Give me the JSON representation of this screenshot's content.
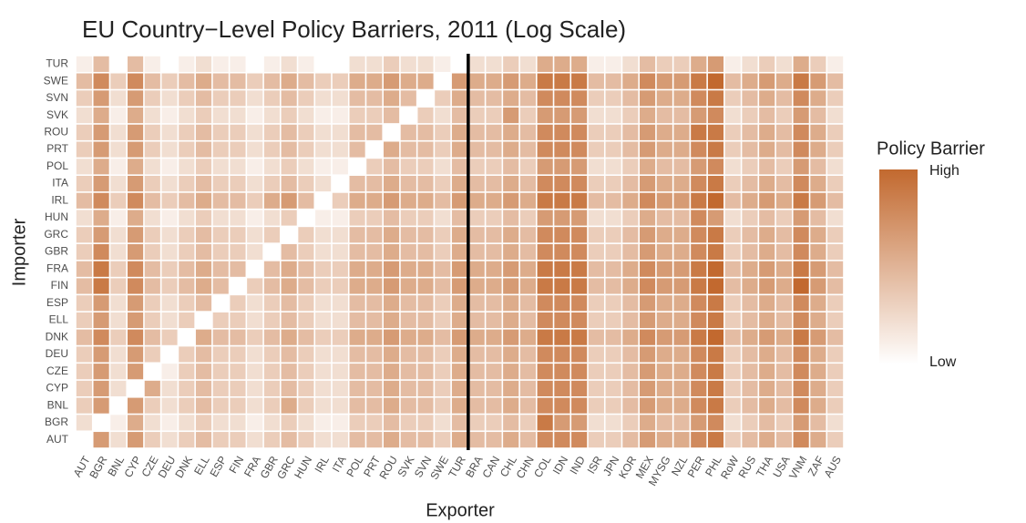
{
  "chart_data": {
    "type": "heatmap",
    "title": "EU Country−Level Policy Barriers, 2011 (Log Scale)",
    "x_label": "Exporter",
    "y_label": "Importer",
    "x": [
      "AUT",
      "BGR",
      "BNL",
      "CYP",
      "CZE",
      "DEU",
      "DNK",
      "ELL",
      "ESP",
      "FIN",
      "FRA",
      "GBR",
      "GRC",
      "HUN",
      "IRL",
      "ITA",
      "POL",
      "PRT",
      "ROU",
      "SVK",
      "SVN",
      "SWE",
      "TUR",
      "BRA",
      "CAN",
      "CHL",
      "CHN",
      "COL",
      "IDN",
      "IND",
      "ISR",
      "JPN",
      "KOR",
      "MEX",
      "MYSG",
      "NZL",
      "PER",
      "PHL",
      "RoW",
      "RUS",
      "THA",
      "USA",
      "VNM",
      "ZAF",
      "AUS"
    ],
    "y": [
      "AUT",
      "BGR",
      "BNL",
      "CYP",
      "CZE",
      "DEU",
      "DNK",
      "ELL",
      "ESP",
      "FIN",
      "FRA",
      "GBR",
      "GRC",
      "HUN",
      "IRL",
      "ITA",
      "POL",
      "PRT",
      "ROU",
      "SVK",
      "SVN",
      "SWE",
      "TUR"
    ],
    "values": [
      [
        null,
        6,
        2,
        6,
        3,
        2,
        3,
        4,
        3,
        3,
        2,
        3,
        4,
        3,
        2,
        2,
        4,
        4,
        5,
        4,
        4,
        3,
        5,
        4,
        4,
        5,
        4,
        7,
        7,
        7,
        3,
        3,
        4,
        6,
        5,
        5,
        7,
        8,
        3,
        4,
        5,
        4,
        7,
        5,
        3
      ],
      [
        2,
        null,
        1,
        5,
        2,
        1,
        2,
        3,
        2,
        2,
        1,
        2,
        3,
        2,
        1,
        1,
        3,
        3,
        4,
        3,
        3,
        2,
        4,
        3,
        3,
        4,
        3,
        8,
        6,
        6,
        2,
        2,
        3,
        5,
        4,
        4,
        6,
        7,
        2,
        3,
        4,
        3,
        6,
        4,
        2
      ],
      [
        3,
        6,
        null,
        6,
        3,
        2,
        3,
        4,
        3,
        3,
        2,
        3,
        5,
        3,
        2,
        2,
        4,
        4,
        5,
        4,
        4,
        3,
        5,
        4,
        4,
        5,
        4,
        7,
        7,
        7,
        3,
        3,
        4,
        6,
        5,
        5,
        7,
        8,
        3,
        4,
        5,
        4,
        7,
        5,
        3
      ],
      [
        3,
        6,
        2,
        null,
        5,
        2,
        3,
        4,
        3,
        3,
        2,
        3,
        4,
        3,
        2,
        2,
        4,
        4,
        5,
        4,
        4,
        3,
        5,
        4,
        4,
        5,
        4,
        7,
        7,
        7,
        3,
        3,
        4,
        6,
        5,
        5,
        7,
        8,
        3,
        4,
        5,
        4,
        7,
        5,
        3
      ],
      [
        3,
        6,
        2,
        6,
        null,
        1,
        3,
        4,
        3,
        3,
        2,
        3,
        4,
        3,
        2,
        2,
        4,
        4,
        5,
        4,
        4,
        3,
        5,
        4,
        4,
        5,
        4,
        7,
        7,
        7,
        3,
        3,
        4,
        6,
        5,
        5,
        7,
        8,
        3,
        4,
        5,
        4,
        7,
        5,
        3
      ],
      [
        3,
        6,
        2,
        6,
        3,
        null,
        3,
        4,
        3,
        3,
        2,
        3,
        4,
        3,
        2,
        2,
        4,
        4,
        5,
        4,
        4,
        3,
        5,
        4,
        4,
        5,
        4,
        7,
        7,
        7,
        3,
        3,
        4,
        6,
        5,
        5,
        7,
        8,
        3,
        4,
        5,
        4,
        7,
        5,
        3
      ],
      [
        4,
        7,
        3,
        7,
        4,
        3,
        null,
        5,
        4,
        4,
        3,
        4,
        5,
        4,
        3,
        3,
        5,
        5,
        6,
        5,
        5,
        4,
        6,
        5,
        5,
        6,
        5,
        8,
        8,
        8,
        4,
        4,
        5,
        7,
        6,
        6,
        8,
        9,
        4,
        5,
        6,
        5,
        8,
        6,
        4
      ],
      [
        3,
        6,
        2,
        6,
        3,
        2,
        3,
        null,
        3,
        3,
        2,
        3,
        4,
        3,
        2,
        2,
        4,
        4,
        5,
        4,
        4,
        3,
        5,
        4,
        4,
        5,
        4,
        7,
        7,
        7,
        3,
        3,
        4,
        6,
        5,
        5,
        7,
        8,
        3,
        4,
        5,
        4,
        7,
        5,
        3
      ],
      [
        3,
        6,
        2,
        6,
        3,
        2,
        3,
        4,
        null,
        3,
        2,
        3,
        4,
        3,
        2,
        2,
        4,
        4,
        5,
        4,
        4,
        3,
        5,
        4,
        4,
        5,
        4,
        7,
        7,
        7,
        3,
        3,
        4,
        6,
        5,
        5,
        7,
        8,
        3,
        4,
        5,
        4,
        7,
        5,
        3
      ],
      [
        4,
        8,
        3,
        7,
        4,
        3,
        4,
        5,
        4,
        null,
        3,
        4,
        5,
        4,
        3,
        3,
        5,
        5,
        6,
        5,
        5,
        4,
        6,
        5,
        5,
        6,
        5,
        8,
        8,
        8,
        4,
        4,
        5,
        7,
        6,
        6,
        8,
        9,
        4,
        5,
        6,
        5,
        9,
        6,
        4
      ],
      [
        4,
        8,
        3,
        7,
        4,
        3,
        4,
        5,
        4,
        4,
        null,
        4,
        5,
        4,
        3,
        3,
        5,
        5,
        6,
        5,
        5,
        4,
        6,
        5,
        5,
        6,
        5,
        8,
        8,
        8,
        4,
        4,
        5,
        7,
        6,
        6,
        8,
        9,
        4,
        5,
        6,
        5,
        8,
        6,
        4
      ],
      [
        3,
        7,
        2,
        6,
        3,
        2,
        3,
        4,
        3,
        3,
        2,
        null,
        4,
        3,
        2,
        2,
        4,
        4,
        5,
        4,
        4,
        3,
        5,
        4,
        4,
        5,
        4,
        7,
        7,
        7,
        3,
        3,
        4,
        6,
        5,
        5,
        7,
        8,
        3,
        4,
        5,
        4,
        7,
        5,
        3
      ],
      [
        3,
        6,
        2,
        6,
        3,
        2,
        3,
        4,
        3,
        3,
        2,
        3,
        null,
        3,
        2,
        2,
        4,
        4,
        5,
        4,
        4,
        3,
        5,
        4,
        4,
        5,
        4,
        7,
        7,
        7,
        3,
        3,
        4,
        6,
        5,
        5,
        7,
        8,
        3,
        4,
        5,
        4,
        7,
        5,
        3
      ],
      [
        2,
        5,
        1,
        5,
        2,
        1,
        2,
        3,
        2,
        2,
        1,
        2,
        3,
        null,
        1,
        1,
        3,
        3,
        4,
        3,
        3,
        2,
        4,
        3,
        3,
        4,
        3,
        6,
        6,
        6,
        2,
        2,
        3,
        5,
        4,
        4,
        7,
        6,
        2,
        3,
        4,
        3,
        6,
        4,
        2
      ],
      [
        4,
        7,
        3,
        7,
        4,
        3,
        4,
        5,
        4,
        4,
        3,
        5,
        6,
        4,
        null,
        3,
        5,
        5,
        6,
        5,
        5,
        4,
        6,
        5,
        5,
        6,
        5,
        8,
        8,
        8,
        4,
        4,
        5,
        7,
        6,
        6,
        8,
        9,
        4,
        5,
        6,
        5,
        8,
        6,
        4
      ],
      [
        3,
        6,
        2,
        6,
        3,
        2,
        3,
        4,
        3,
        3,
        2,
        3,
        4,
        3,
        2,
        null,
        4,
        4,
        5,
        4,
        4,
        3,
        5,
        4,
        4,
        5,
        4,
        7,
        7,
        7,
        3,
        3,
        4,
        6,
        5,
        5,
        7,
        8,
        3,
        4,
        5,
        4,
        7,
        5,
        3
      ],
      [
        2,
        5,
        1,
        5,
        2,
        1,
        2,
        3,
        2,
        2,
        1,
        2,
        3,
        2,
        1,
        1,
        null,
        3,
        4,
        3,
        3,
        2,
        4,
        3,
        3,
        4,
        3,
        6,
        6,
        6,
        2,
        2,
        3,
        5,
        4,
        4,
        6,
        7,
        2,
        3,
        4,
        3,
        6,
        4,
        2
      ],
      [
        3,
        6,
        2,
        6,
        3,
        2,
        3,
        4,
        3,
        3,
        2,
        3,
        4,
        3,
        2,
        2,
        4,
        null,
        5,
        4,
        4,
        3,
        5,
        4,
        4,
        5,
        4,
        7,
        7,
        7,
        3,
        3,
        4,
        6,
        5,
        5,
        7,
        8,
        3,
        4,
        5,
        4,
        7,
        5,
        3
      ],
      [
        3,
        6,
        2,
        6,
        3,
        2,
        3,
        4,
        3,
        3,
        2,
        3,
        4,
        3,
        2,
        2,
        4,
        4,
        null,
        4,
        4,
        3,
        5,
        4,
        4,
        5,
        4,
        7,
        7,
        7,
        3,
        3,
        4,
        6,
        5,
        5,
        8,
        8,
        3,
        4,
        5,
        4,
        7,
        5,
        3
      ],
      [
        2,
        5,
        1,
        5,
        2,
        1,
        2,
        3,
        2,
        2,
        1,
        2,
        3,
        2,
        1,
        1,
        3,
        3,
        4,
        null,
        3,
        2,
        4,
        3,
        3,
        6,
        3,
        6,
        6,
        6,
        2,
        2,
        3,
        5,
        4,
        4,
        6,
        7,
        2,
        3,
        4,
        3,
        6,
        4,
        2
      ],
      [
        3,
        6,
        2,
        6,
        3,
        2,
        3,
        4,
        3,
        3,
        2,
        3,
        4,
        3,
        2,
        2,
        4,
        4,
        5,
        4,
        null,
        3,
        5,
        4,
        4,
        5,
        4,
        7,
        7,
        7,
        3,
        3,
        4,
        6,
        5,
        5,
        7,
        8,
        3,
        4,
        5,
        4,
        7,
        5,
        3
      ],
      [
        4,
        7,
        3,
        7,
        4,
        3,
        4,
        5,
        4,
        4,
        3,
        4,
        5,
        4,
        3,
        3,
        5,
        5,
        6,
        5,
        5,
        null,
        6,
        5,
        5,
        6,
        5,
        8,
        8,
        8,
        4,
        4,
        5,
        7,
        6,
        6,
        8,
        9,
        4,
        5,
        6,
        5,
        8,
        6,
        4
      ],
      [
        1,
        4,
        0,
        4,
        1,
        0,
        1,
        2,
        1,
        1,
        0,
        1,
        2,
        1,
        0,
        0,
        2,
        2,
        3,
        2,
        2,
        1,
        null,
        2,
        2,
        3,
        2,
        5,
        5,
        5,
        1,
        1,
        2,
        4,
        3,
        3,
        5,
        6,
        1,
        2,
        3,
        2,
        5,
        3,
        1
      ]
    ],
    "clim": [
      0,
      9
    ],
    "colors": [
      "#ffffff",
      "#c2692f"
    ],
    "legend": {
      "title": "Policy Barrier",
      "labels": [
        "High",
        "Low"
      ]
    }
  }
}
